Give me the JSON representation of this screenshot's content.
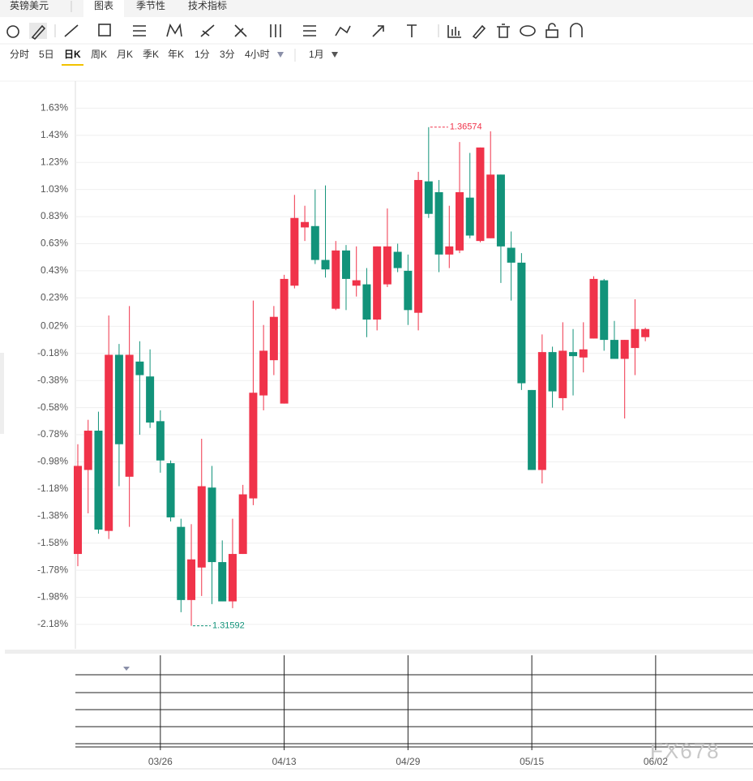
{
  "ui": {
    "symbol": "英镑美元",
    "tabs": [
      "图表",
      "季节性",
      "技术指标"
    ],
    "periods": [
      "分时",
      "5日",
      "日K",
      "周K",
      "月K",
      "季K",
      "年K",
      "1分",
      "3分",
      "4小时"
    ],
    "range": "1月",
    "watermark": "FX678"
  },
  "chart_data": {
    "type": "candlestick",
    "categories": [
      null,
      null,
      null,
      null,
      null,
      null,
      null,
      null,
      "03/26",
      null,
      null,
      null,
      null,
      null,
      null,
      null,
      null,
      null,
      null,
      null,
      "04/13",
      null,
      null,
      null,
      null,
      null,
      null,
      null,
      null,
      null,
      null,
      null,
      "04/29",
      null,
      null,
      null,
      null,
      null,
      null,
      null,
      null,
      null,
      null,
      null,
      "05/15",
      null,
      null,
      null,
      null,
      null,
      null,
      null,
      null,
      null,
      null,
      null,
      "06/02"
    ],
    "open": [
      -1.66,
      -1.04,
      -0.75,
      -1.49,
      -0.19,
      -1.09,
      -0.24,
      -0.35,
      -0.68,
      -0.99,
      -1.46,
      -2.0,
      -1.76,
      -1.17,
      -1.72,
      -2.01,
      -1.66,
      -1.25,
      -0.49,
      -0.23,
      -0.55,
      0.32,
      0.75,
      0.76,
      0.51,
      0.15,
      0.58,
      0.32,
      0.33,
      0.07,
      0.33,
      0.57,
      0.43,
      0.12,
      1.09,
      1.01,
      0.55,
      0.58,
      0.97,
      0.65,
      0.67,
      1.14,
      0.6,
      0.49,
      -0.45,
      -1.04,
      -0.17,
      -0.51,
      -0.17,
      -0.21,
      -0.07,
      0.36,
      -0.08,
      -0.22,
      -0.14,
      -0.06,
      null
    ],
    "high": [
      -0.85,
      -0.67,
      -0.61,
      0.1,
      -0.11,
      0.17,
      -0.09,
      -0.15,
      -0.6,
      -0.97,
      -1.4,
      -1.44,
      -0.81,
      -1.01,
      -1.56,
      -1.4,
      -1.15,
      0.21,
      0.03,
      0.17,
      0.4,
      0.99,
      0.91,
      1.03,
      1.06,
      0.65,
      0.62,
      0.61,
      0.45,
      0.61,
      0.89,
      0.63,
      0.55,
      1.16,
      1.49,
      1.1,
      0.91,
      1.38,
      1.3,
      1.34,
      1.46,
      1.14,
      0.72,
      0.56,
      -0.45,
      -0.04,
      -0.13,
      0.05,
      0.0,
      0.05,
      0.39,
      0.37,
      0.06,
      -0.08,
      0.22,
      0.01,
      null
    ],
    "low": [
      -1.75,
      -1.36,
      -1.51,
      -1.55,
      -1.16,
      -1.46,
      -0.78,
      -0.73,
      -1.06,
      -1.42,
      -2.09,
      -2.19,
      -1.97,
      -2.03,
      -2.01,
      -2.06,
      -1.66,
      -1.3,
      -0.6,
      -0.34,
      -0.55,
      0.3,
      0.65,
      0.48,
      0.38,
      0.14,
      0.14,
      0.24,
      -0.06,
      -0.01,
      0.31,
      0.42,
      0.03,
      -0.01,
      0.82,
      0.42,
      0.45,
      0.56,
      0.67,
      0.64,
      0.67,
      0.34,
      0.21,
      -0.45,
      -1.04,
      -1.14,
      -0.58,
      -0.6,
      -0.49,
      -0.32,
      -0.07,
      -0.16,
      -0.22,
      -0.66,
      -0.34,
      -0.09,
      null
    ],
    "close": [
      -1.01,
      -0.75,
      -1.48,
      -0.19,
      -0.85,
      -0.19,
      -0.34,
      -0.69,
      -0.97,
      -1.39,
      -2.0,
      -1.7,
      -1.16,
      -1.72,
      -2.01,
      -1.66,
      -1.22,
      -0.47,
      -0.16,
      0.09,
      0.37,
      0.82,
      0.79,
      0.51,
      0.44,
      0.58,
      0.37,
      0.36,
      0.07,
      0.61,
      0.61,
      0.45,
      0.14,
      1.1,
      0.85,
      0.55,
      0.61,
      1.01,
      0.69,
      1.34,
      1.14,
      0.61,
      0.49,
      -0.4,
      -1.04,
      -0.17,
      -0.46,
      -0.16,
      -0.2,
      -0.15,
      0.37,
      -0.08,
      -0.22,
      -0.08,
      0.0,
      0.0,
      null
    ],
    "up_color": "#f0334a",
    "down_color": "#12937a",
    "annotations": [
      "1.36574",
      "1.31592"
    ],
    "ylim": [
      -2.36,
      1.83
    ],
    "yticks": [
      {
        "value": 1.63,
        "label": "1.63%"
      },
      {
        "value": 1.43,
        "label": "1.43%"
      },
      {
        "value": 1.23,
        "label": "1.23%"
      },
      {
        "value": 1.03,
        "label": "1.03%"
      },
      {
        "value": 0.83,
        "label": "0.83%"
      },
      {
        "value": 0.63,
        "label": "0.63%"
      },
      {
        "value": 0.43,
        "label": "0.43%"
      },
      {
        "value": 0.23,
        "label": "0.23%"
      },
      {
        "value": 0.02,
        "label": "0.02%"
      },
      {
        "value": -0.18,
        "label": "-0.18%"
      },
      {
        "value": -0.38,
        "label": "-0.38%"
      },
      {
        "value": -0.58,
        "label": "-0.58%"
      },
      {
        "value": -0.78,
        "label": "-0.78%"
      },
      {
        "value": -0.98,
        "label": "-0.98%"
      },
      {
        "value": -1.18,
        "label": "-1.18%"
      },
      {
        "value": -1.38,
        "label": "-1.38%"
      },
      {
        "value": -1.58,
        "label": "-1.58%"
      },
      {
        "value": -1.78,
        "label": "-1.78%"
      },
      {
        "value": -1.98,
        "label": "-1.98%"
      },
      {
        "value": -2.18,
        "label": "-2.18%"
      }
    ],
    "grid": true
  }
}
